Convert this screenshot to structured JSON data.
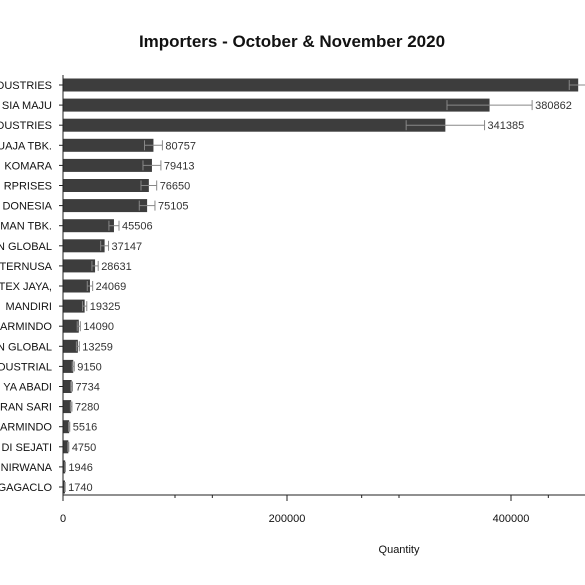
{
  "chart_data": {
    "type": "bar",
    "orientation": "horizontal",
    "title": "Importers - October & November 2020",
    "xlabel": "Quantity",
    "ylabel": "",
    "xlim": [
      0,
      465000
    ],
    "xticks": [
      0,
      200000,
      400000
    ],
    "minor_xticks": [
      100000,
      133333,
      266667,
      300000,
      433333
    ],
    "grid": false,
    "bar_color": "#3d3d3d",
    "categories": [
      "DUSTRIES",
      "SIA MAJU",
      "DUSTRIES",
      "UAJA TBK.",
      "KOMARA",
      "RPRISES",
      "DONESIA",
      "MAN TBK.",
      "N GLOBAL",
      "TERNUSA",
      "TEX JAYA,",
      "MANDIRI",
      "ARMINDO",
      "N GLOBAL",
      "DUSTRIAL",
      "YA ABADI",
      "RAN SARI",
      "ARMINDO",
      "DI SEJATI",
      "NIRWANA",
      "GAGACLO"
    ],
    "values": [
      460000,
      380862,
      341385,
      80757,
      79413,
      76650,
      75105,
      45506,
      37147,
      28631,
      24069,
      19325,
      14090,
      13259,
      9150,
      7734,
      7280,
      5516,
      4750,
      1946,
      1740
    ],
    "value_labels": [
      "",
      "380862",
      "341385",
      "80757",
      "79413",
      "76650",
      "75105",
      "45506",
      "37147",
      "28631",
      "24069",
      "19325",
      "14090",
      "13259",
      "9150",
      "7734",
      "7280",
      "5516",
      "4750",
      "1946",
      "1740"
    ],
    "error": [
      8000,
      38000,
      35000,
      8000,
      8000,
      7000,
      7000,
      4500,
      3500,
      2800,
      2400,
      1900,
      1400,
      1300,
      900,
      700,
      700,
      500,
      450,
      200,
      200
    ]
  }
}
